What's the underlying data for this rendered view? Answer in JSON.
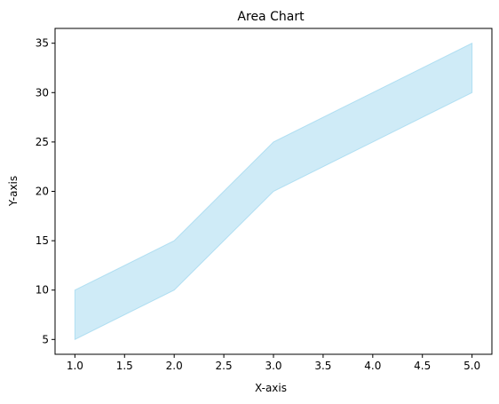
{
  "chart_data": {
    "type": "area",
    "title": "Area Chart",
    "xlabel": "X-axis",
    "ylabel": "Y-axis",
    "x": [
      1,
      2,
      3,
      4,
      5
    ],
    "series": [
      {
        "role": "lower",
        "values": [
          5,
          10,
          20,
          25,
          30
        ]
      },
      {
        "role": "upper",
        "values": [
          10,
          15,
          25,
          30,
          35
        ]
      }
    ],
    "xlim": [
      0.8,
      5.2
    ],
    "ylim": [
      3.5,
      36.5
    ],
    "x_ticks": [
      "1.0",
      "1.5",
      "2.0",
      "2.5",
      "3.0",
      "3.5",
      "4.0",
      "4.5",
      "5.0"
    ],
    "y_ticks": [
      "5",
      "10",
      "15",
      "20",
      "25",
      "30",
      "35"
    ],
    "fill_color": "#87ceeb",
    "fill_opacity": 0.4,
    "grid": false,
    "legend": "none"
  }
}
